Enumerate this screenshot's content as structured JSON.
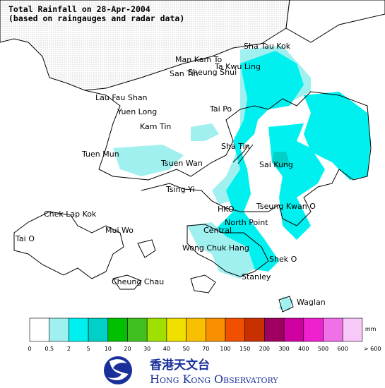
{
  "title": [
    "Total Rainfall on 28-Apr-2004",
    "(based on raingauges and radar data)"
  ],
  "places": [
    "Sha Tau Kok",
    "Man Kam To",
    "Ta Kwu Ling",
    "San Tin",
    "Sheung Shui",
    "Lau Fau Shan",
    "Yuen Long",
    "Tai Po",
    "Kam Tin",
    "Sha Tin",
    "Tuen Mun",
    "Tsuen Wan",
    "Sai Kung",
    "Tsing Yi",
    "Chek Lap Kok",
    "HKO",
    "Tseung Kwan O",
    "North Point",
    "Mui Wo",
    "Central",
    "Tai O",
    "Wong Chuk Hang",
    "Shek O",
    "Stanley",
    "Cheung Chau",
    "Waglan"
  ],
  "legend": {
    "colors": [
      "#ffffff",
      "#a0f0f0",
      "#00f0f0",
      "#00d0c8",
      "#00c000",
      "#40c020",
      "#a0e000",
      "#f0e000",
      "#f8c000",
      "#f89000",
      "#f05000",
      "#c83000",
      "#a00060",
      "#d000a0",
      "#f020d0",
      "#f070e8",
      "#f8c8f8"
    ],
    "labels": [
      "0",
      "0.5",
      "2",
      "5",
      "10",
      "20",
      "30",
      "40",
      "50",
      "70",
      "100",
      "150",
      "200",
      "300",
      "400",
      "500",
      "600",
      "> 600"
    ],
    "unit": "mm"
  },
  "logo": {
    "chinese": "香港天文台",
    "english": "Hong Kong Observatory"
  }
}
